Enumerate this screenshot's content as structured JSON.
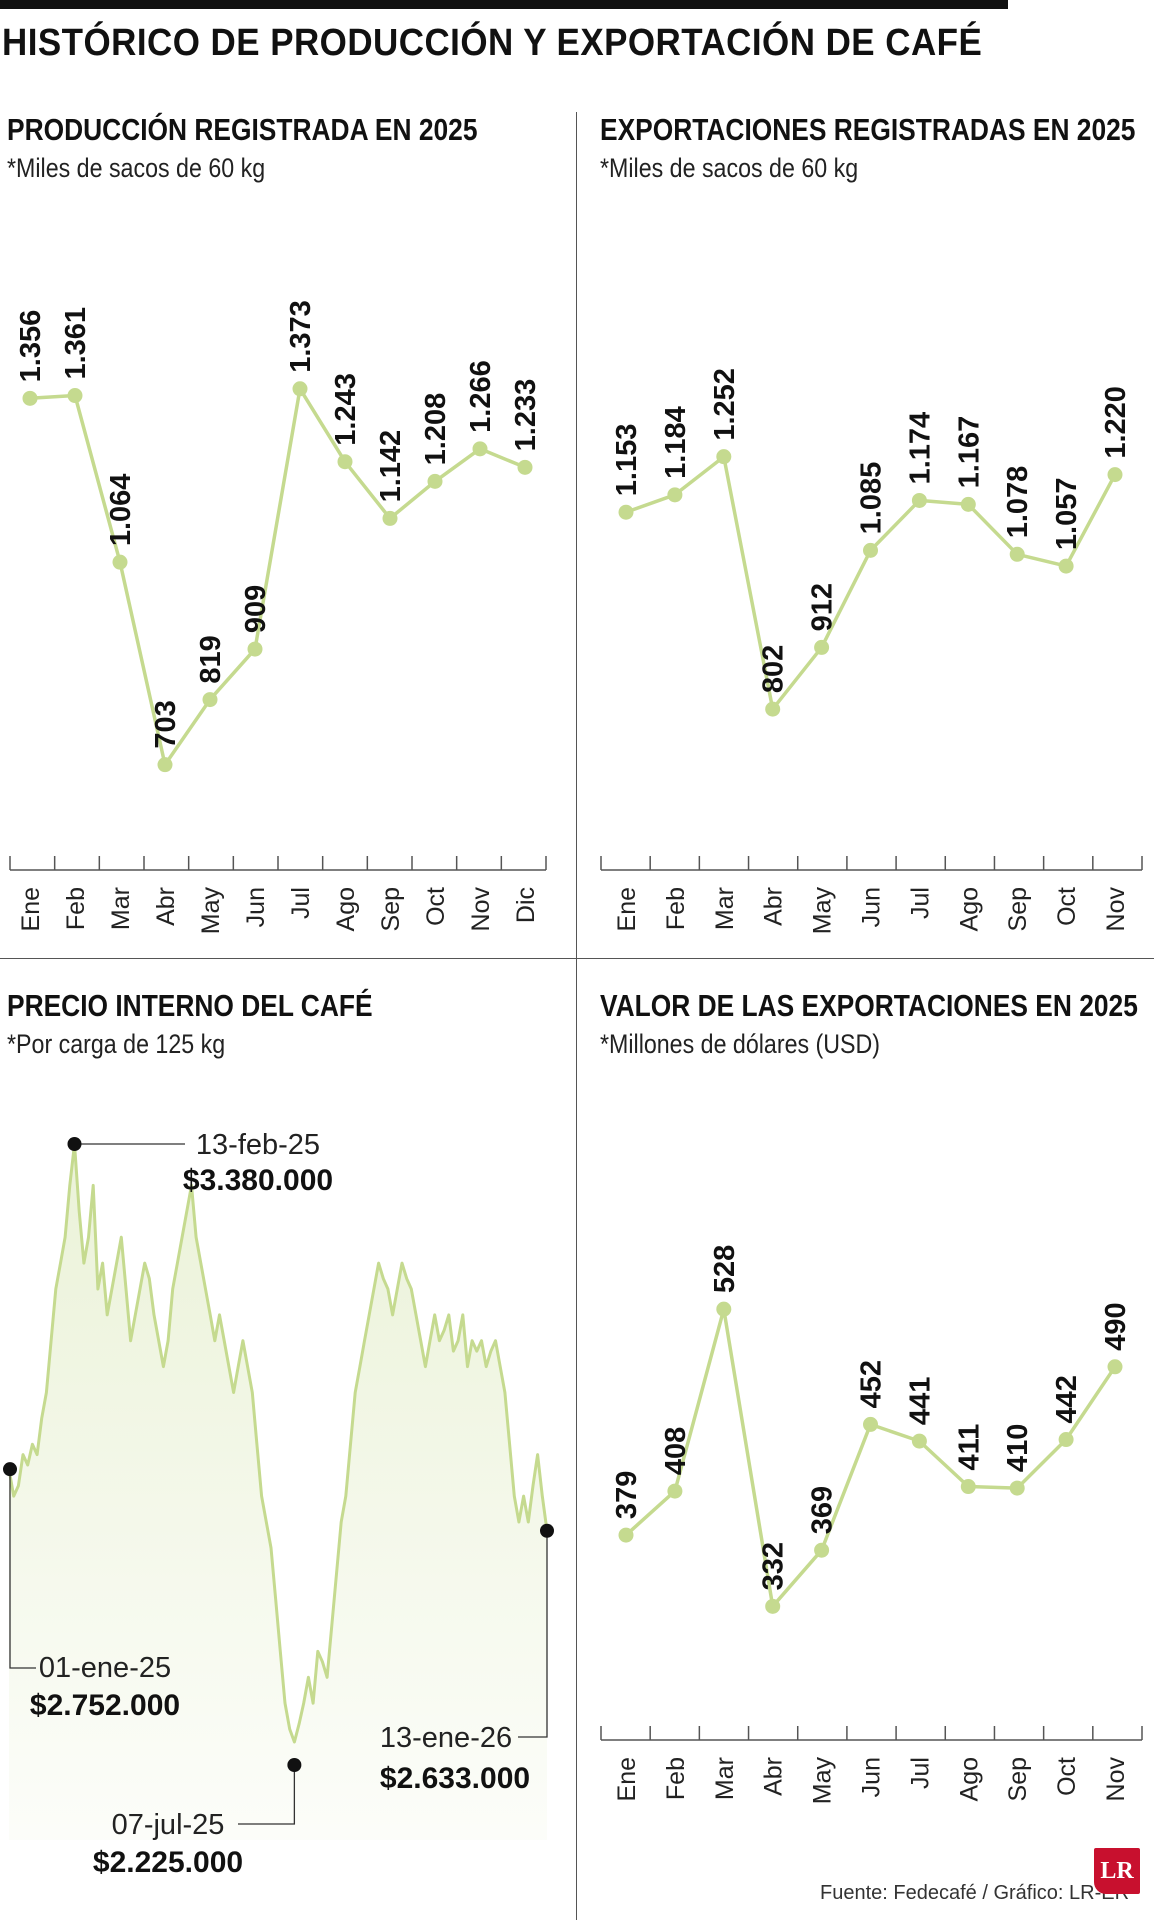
{
  "title": "HISTÓRICO DE PRODUCCIÓN Y EXPORTACIÓN DE CAFÉ",
  "source": "Fuente: Fedecafé / Gráfico: LR-ER",
  "logo_text": "LR",
  "accent_color": "#c5da8f",
  "panels": {
    "production": {
      "title": "PRODUCCIÓN REGISTRADA EN 2025",
      "subtitle": "*Miles de sacos de 60 kg"
    },
    "exports": {
      "title": "EXPORTACIONES REGISTRADAS EN 2025",
      "subtitle": "*Miles de sacos de 60 kg"
    },
    "price": {
      "title": "PRECIO INTERNO DEL CAFÉ",
      "subtitle": "*Por carga de 125 kg"
    },
    "value": {
      "title": "VALOR DE LAS EXPORTACIONES EN 2025",
      "subtitle": "*Millones de dólares (USD)"
    }
  },
  "chart_data": [
    {
      "id": "production",
      "type": "line",
      "categories": [
        "Ene",
        "Feb",
        "Mar",
        "Abr",
        "May",
        "Jun",
        "Jul",
        "Ago",
        "Sep",
        "Oct",
        "Nov",
        "Dic"
      ],
      "values": [
        1356,
        1361,
        1064,
        703,
        819,
        909,
        1373,
        1243,
        1142,
        1208,
        1266,
        1233
      ],
      "labels": [
        "1.356",
        "1.361",
        "1.064",
        "703",
        "819",
        "909",
        "1.373",
        "1.243",
        "1.142",
        "1.208",
        "1.266",
        "1.233"
      ],
      "ylim": [
        640,
        1460
      ]
    },
    {
      "id": "exports",
      "type": "line",
      "categories": [
        "Ene",
        "Feb",
        "Mar",
        "Abr",
        "May",
        "Jun",
        "Jul",
        "Ago",
        "Sep",
        "Oct",
        "Nov"
      ],
      "values": [
        1153,
        1184,
        1252,
        802,
        912,
        1085,
        1174,
        1167,
        1078,
        1057,
        1220
      ],
      "labels": [
        "1.153",
        "1.184",
        "1.252",
        "802",
        "912",
        "1.085",
        "1.174",
        "1.167",
        "1.078",
        "1.057",
        "1.220"
      ],
      "ylim": [
        640,
        1460
      ]
    },
    {
      "id": "price",
      "type": "area",
      "x_range": [
        "2025-01-01",
        "2026-01-13"
      ],
      "series": [
        {
          "values": [
            2752,
            2700,
            2720,
            2780,
            2760,
            2800,
            2780,
            2850,
            2900,
            3000,
            3100,
            3150,
            3200,
            3300,
            3380,
            3250,
            3150,
            3200,
            3300,
            3100,
            3150,
            3050,
            3100,
            3150,
            3200,
            3100,
            3000,
            3050,
            3100,
            3150,
            3120,
            3050,
            3000,
            2950,
            3000,
            3100,
            3150,
            3200,
            3250,
            3300,
            3200,
            3150,
            3100,
            3050,
            3000,
            3050,
            3000,
            2950,
            2900,
            2950,
            3000,
            2950,
            2900,
            2800,
            2700,
            2650,
            2600,
            2500,
            2400,
            2300,
            2250,
            2225,
            2260,
            2300,
            2350,
            2300,
            2400,
            2380,
            2350,
            2450,
            2550,
            2650,
            2700,
            2800,
            2900,
            2950,
            3000,
            3050,
            3100,
            3150,
            3120,
            3100,
            3050,
            3100,
            3150,
            3120,
            3100,
            3050,
            3000,
            2950,
            3000,
            3050,
            3000,
            3020,
            3050,
            2980,
            3000,
            3050,
            2950,
            3000,
            2980,
            3000,
            2950,
            2980,
            3000,
            2950,
            2900,
            2800,
            2700,
            2650,
            2700,
            2650,
            2720,
            2780,
            2700,
            2633
          ]
        }
      ]
    },
    {
      "id": "value",
      "type": "line",
      "categories": [
        "Ene",
        "Feb",
        "Mar",
        "Abr",
        "May",
        "Jun",
        "Jul",
        "Ago",
        "Sep",
        "Oct",
        "Nov"
      ],
      "values": [
        379,
        408,
        528,
        332,
        369,
        452,
        441,
        411,
        410,
        442,
        490
      ],
      "labels": [
        "379",
        "408",
        "528",
        "332",
        "369",
        "452",
        "441",
        "411",
        "410",
        "442",
        "490"
      ],
      "ylim": [
        290,
        600
      ]
    }
  ],
  "price_annotations": [
    {
      "date": "13-feb-25",
      "value": "$3.380.000"
    },
    {
      "date": "01-ene-25",
      "value": "$2.752.000"
    },
    {
      "date": "07-jul-25",
      "value": "$2.225.000"
    },
    {
      "date": "13-ene-26",
      "value": "$2.633.000"
    }
  ]
}
